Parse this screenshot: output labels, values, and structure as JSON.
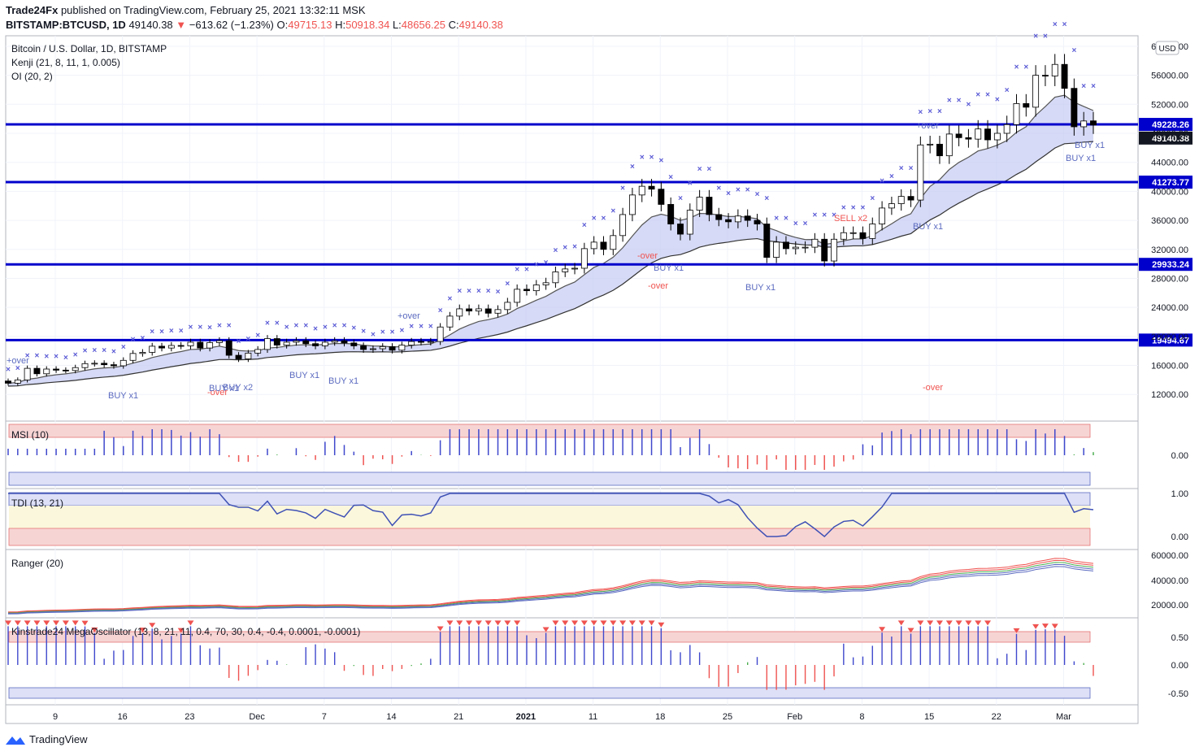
{
  "header": {
    "line1_user": "Trade24Fx",
    "line1_rest": " published on TradingView.com, February 25, 2021 13:32:11 MSK",
    "symbol": "BITSTAMP:BTCUSD, 1D",
    "last": "49140.38",
    "change": "−613.62 (−1.23%)",
    "o_label": "O:",
    "o": "49715.13",
    "h_label": "H:",
    "h": "50918.34",
    "l_label": "L:",
    "l": "48656.25",
    "c_label": "C:",
    "c": "49140.38"
  },
  "legend": {
    "title": "Bitcoin / U.S. Dollar, 1D, BITSTAMP",
    "kenji": "Kenji (21, 8, 11, 1, 0.005)",
    "oi": "OI (20, 2)"
  },
  "currency_badge": "USD",
  "price_axis": {
    "ticks": [
      "60000.00",
      "56000.00",
      "52000.00",
      "48000.00",
      "44000.00",
      "40000.00",
      "36000.00",
      "32000.00",
      "28000.00",
      "24000.00",
      "20000.00",
      "16000.00",
      "12000.00"
    ],
    "tick_values": [
      60000,
      56000,
      52000,
      48000,
      44000,
      40000,
      36000,
      32000,
      28000,
      24000,
      20000,
      16000,
      12000
    ],
    "range": [
      9000,
      61000
    ]
  },
  "hlines": [
    {
      "value": 49228.26,
      "label": "49228.26"
    },
    {
      "value": 41273.77,
      "label": "41273.77"
    },
    {
      "value": 29933.24,
      "label": "29933.24"
    },
    {
      "value": 19494.67,
      "label": "19494.67"
    }
  ],
  "last_price_label": "49140.38",
  "time_axis": [
    "9",
    "16",
    "23",
    "Dec",
    "7",
    "14",
    "21",
    "2021",
    "11",
    "18",
    "25",
    "Feb",
    "8",
    "15",
    "22",
    "Mar"
  ],
  "signals": [
    "+over",
    "BUY x1",
    "-over",
    "BUY x1",
    "BUY x2",
    "BUY x1",
    "BUY x1",
    "+over",
    "-over",
    "-over",
    "BUY x1",
    "BUY x1",
    "-over",
    "SELL x2",
    "BUY x1",
    "+over",
    "BUY x1",
    "BUY x1"
  ],
  "panels": {
    "msi": {
      "title": "MSI (10)",
      "ticks": [
        "0.00"
      ]
    },
    "tdi": {
      "title": "TDI (13, 21)",
      "ticks": [
        "1.00",
        "0.00"
      ]
    },
    "ranger": {
      "title": "Ranger (20)",
      "ticks": [
        "60000.00",
        "40000.00",
        "20000.00"
      ]
    },
    "mega": {
      "title": "Kinstrade24 MegaOscillator (13, 8, 21, 11, 0.4, 70, 30, 0.4, -0.4, 0.0001, -0.0001)",
      "ticks": [
        "0.50",
        "0.00",
        "-0.50"
      ]
    }
  },
  "colors": {
    "hline": "#0000cc",
    "up": "#ffffff",
    "down": "#000000",
    "cross": "#5b5bd6",
    "band": "#c5cbf2",
    "red": "#ef5350",
    "green": "#4caf50",
    "blue": "#3f48cc"
  },
  "chart_data": {
    "type": "candlestick",
    "title": "Bitcoin / U.S. Dollar, 1D, BITSTAMP",
    "x_range": [
      "2020-11-03",
      "2021-02-25"
    ],
    "closes": [
      13550,
      14000,
      15600,
      14850,
      15500,
      15350,
      15300,
      15700,
      16250,
      16300,
      16100,
      15950,
      16700,
      17650,
      17800,
      18650,
      18400,
      18750,
      18700,
      19200,
      18400,
      19150,
      19400,
      17400,
      16900,
      17700,
      18200,
      19700,
      18800,
      19200,
      19400,
      19000,
      18700,
      19200,
      19400,
      19100,
      18700,
      18200,
      18300,
      18600,
      18100,
      18800,
      19300,
      19250,
      19300,
      21300,
      22800,
      23800,
      23500,
      23800,
      23200,
      23700,
      24700,
      26500,
      26300,
      27100,
      27400,
      28900,
      29300,
      29400,
      32100,
      33000,
      32000,
      33900,
      36800,
      39500,
      40700,
      40300,
      38200,
      35500,
      34100,
      37400,
      39200,
      36800,
      36100,
      35800,
      36600,
      36000,
      35500,
      30900,
      33000,
      32100,
      32300,
      32300,
      33400,
      30400,
      33400,
      34300,
      34300,
      33500,
      35500,
      37700,
      38300,
      39300,
      38800,
      46400,
      46500,
      44900,
      47900,
      47400,
      47200,
      48600,
      47100,
      48000,
      49200,
      52100,
      51600,
      56000,
      55900,
      57500,
      54200,
      48900,
      49700,
      49140
    ],
    "opens": [
      13850,
      13550,
      14000,
      15600,
      14850,
      15500,
      15350,
      15300,
      15700,
      16250,
      16300,
      16100,
      15950,
      16700,
      17650,
      17800,
      18650,
      18400,
      18750,
      18700,
      19200,
      18400,
      19150,
      19400,
      17400,
      16900,
      17700,
      18200,
      19700,
      18800,
      19200,
      19400,
      19000,
      18700,
      19200,
      19400,
      19100,
      18700,
      18200,
      18300,
      18600,
      18100,
      18800,
      19300,
      19250,
      19300,
      21300,
      22800,
      23800,
      23500,
      23800,
      23200,
      23700,
      24700,
      26500,
      26300,
      27100,
      27400,
      28900,
      29300,
      29400,
      32100,
      33000,
      32000,
      33900,
      36800,
      39500,
      40700,
      40300,
      38200,
      35500,
      34100,
      37400,
      39200,
      36800,
      36100,
      35800,
      36600,
      36000,
      35500,
      30900,
      33000,
      32100,
      32300,
      32300,
      33400,
      30400,
      33400,
      34300,
      34300,
      33500,
      35500,
      37700,
      38300,
      39300,
      38800,
      46400,
      46500,
      44900,
      47900,
      47400,
      47200,
      48600,
      47100,
      48000,
      49200,
      52100,
      51600,
      56000,
      55900,
      57500,
      54200,
      48900,
      49715
    ]
  }
}
